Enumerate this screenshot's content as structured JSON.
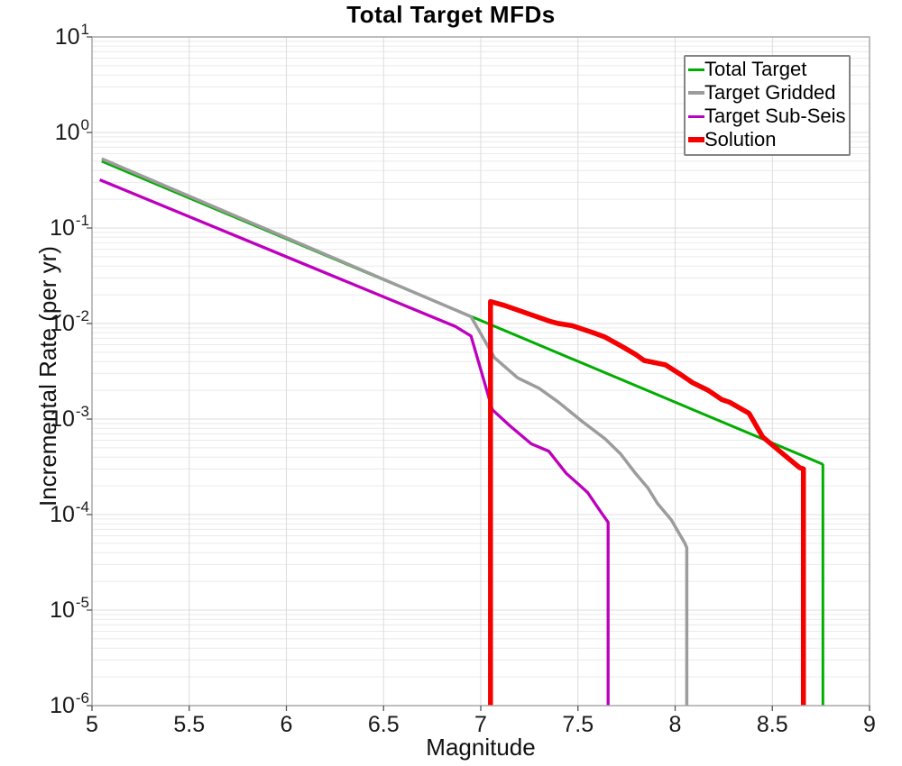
{
  "chart_data": {
    "type": "line",
    "title": "Total Target MFDs",
    "xlabel": "Magnitude",
    "ylabel": "Incremental Rate (per yr)",
    "x_scale": "linear",
    "y_scale": "log",
    "xlim": [
      5,
      9
    ],
    "ylim_exponents": [
      -6,
      1
    ],
    "x_ticks": [
      5,
      5.5,
      6,
      6.5,
      7,
      7.5,
      8,
      8.5,
      9
    ],
    "x_tick_labels": [
      "5",
      "5.5",
      "6",
      "6.5",
      "7",
      "7.5",
      "8",
      "8.5",
      "9"
    ],
    "y_tick_exponents": [
      1,
      0,
      -1,
      -2,
      -3,
      -4,
      -5,
      -6
    ],
    "x_gridlines": [
      5.5,
      6,
      6.5,
      7,
      7.5,
      8,
      8.5
    ],
    "grid_minor": true,
    "legend_position": "upper-right",
    "series": [
      {
        "name": "Total Target",
        "color": "#00ad00",
        "width": 3,
        "points": [
          [
            5.05,
            0.5
          ],
          [
            8.755,
            0.00034
          ],
          [
            8.76,
            0.00033
          ],
          [
            8.76,
            1e-06
          ]
        ]
      },
      {
        "name": "Target Gridded",
        "color": "#9c9c9c",
        "width": 3.5,
        "points": [
          [
            5.05,
            0.53
          ],
          [
            6.95,
            0.0118
          ],
          [
            7.07,
            0.0044
          ],
          [
            7.19,
            0.0027
          ],
          [
            7.3,
            0.0021
          ],
          [
            7.4,
            0.0015
          ],
          [
            7.52,
            0.00095
          ],
          [
            7.64,
            0.00062
          ],
          [
            7.72,
            0.00043
          ],
          [
            7.79,
            0.00028
          ],
          [
            7.86,
            0.00019
          ],
          [
            7.91,
            0.00013
          ],
          [
            7.98,
            8.8e-05
          ],
          [
            8.05,
            5e-05
          ],
          [
            8.06,
            4.5e-05
          ],
          [
            8.06,
            1e-06
          ]
        ]
      },
      {
        "name": "Target Sub-Seis",
        "color": "#bd00bd",
        "width": 3.3,
        "points": [
          [
            5.04,
            0.32
          ],
          [
            6.87,
            0.0093
          ],
          [
            6.95,
            0.0074
          ],
          [
            7.06,
            0.00125
          ],
          [
            7.15,
            0.00085
          ],
          [
            7.26,
            0.00055
          ],
          [
            7.35,
            0.00046
          ],
          [
            7.44,
            0.00027
          ],
          [
            7.5,
            0.00021
          ],
          [
            7.55,
            0.00017
          ],
          [
            7.62,
            0.000105
          ],
          [
            7.655,
            8.3e-05
          ],
          [
            7.655,
            1e-06
          ]
        ]
      },
      {
        "name": "Solution",
        "color": "#f40000",
        "width": 5.5,
        "points": [
          [
            7.05,
            1e-06
          ],
          [
            7.05,
            0.017
          ],
          [
            7.12,
            0.0155
          ],
          [
            7.36,
            0.0105
          ],
          [
            7.4,
            0.01
          ],
          [
            7.47,
            0.0095
          ],
          [
            7.58,
            0.008
          ],
          [
            7.64,
            0.0072
          ],
          [
            7.73,
            0.0057
          ],
          [
            7.8,
            0.0047
          ],
          [
            7.84,
            0.0041
          ],
          [
            7.95,
            0.0037
          ],
          [
            8.02,
            0.003
          ],
          [
            8.09,
            0.0024
          ],
          [
            8.17,
            0.002
          ],
          [
            8.24,
            0.0016
          ],
          [
            8.28,
            0.0015
          ],
          [
            8.38,
            0.00115
          ],
          [
            8.45,
            0.00065
          ],
          [
            8.55,
            0.00044
          ],
          [
            8.64,
            0.00031
          ],
          [
            8.66,
            0.0003
          ],
          [
            8.66,
            1e-06
          ]
        ]
      }
    ]
  }
}
